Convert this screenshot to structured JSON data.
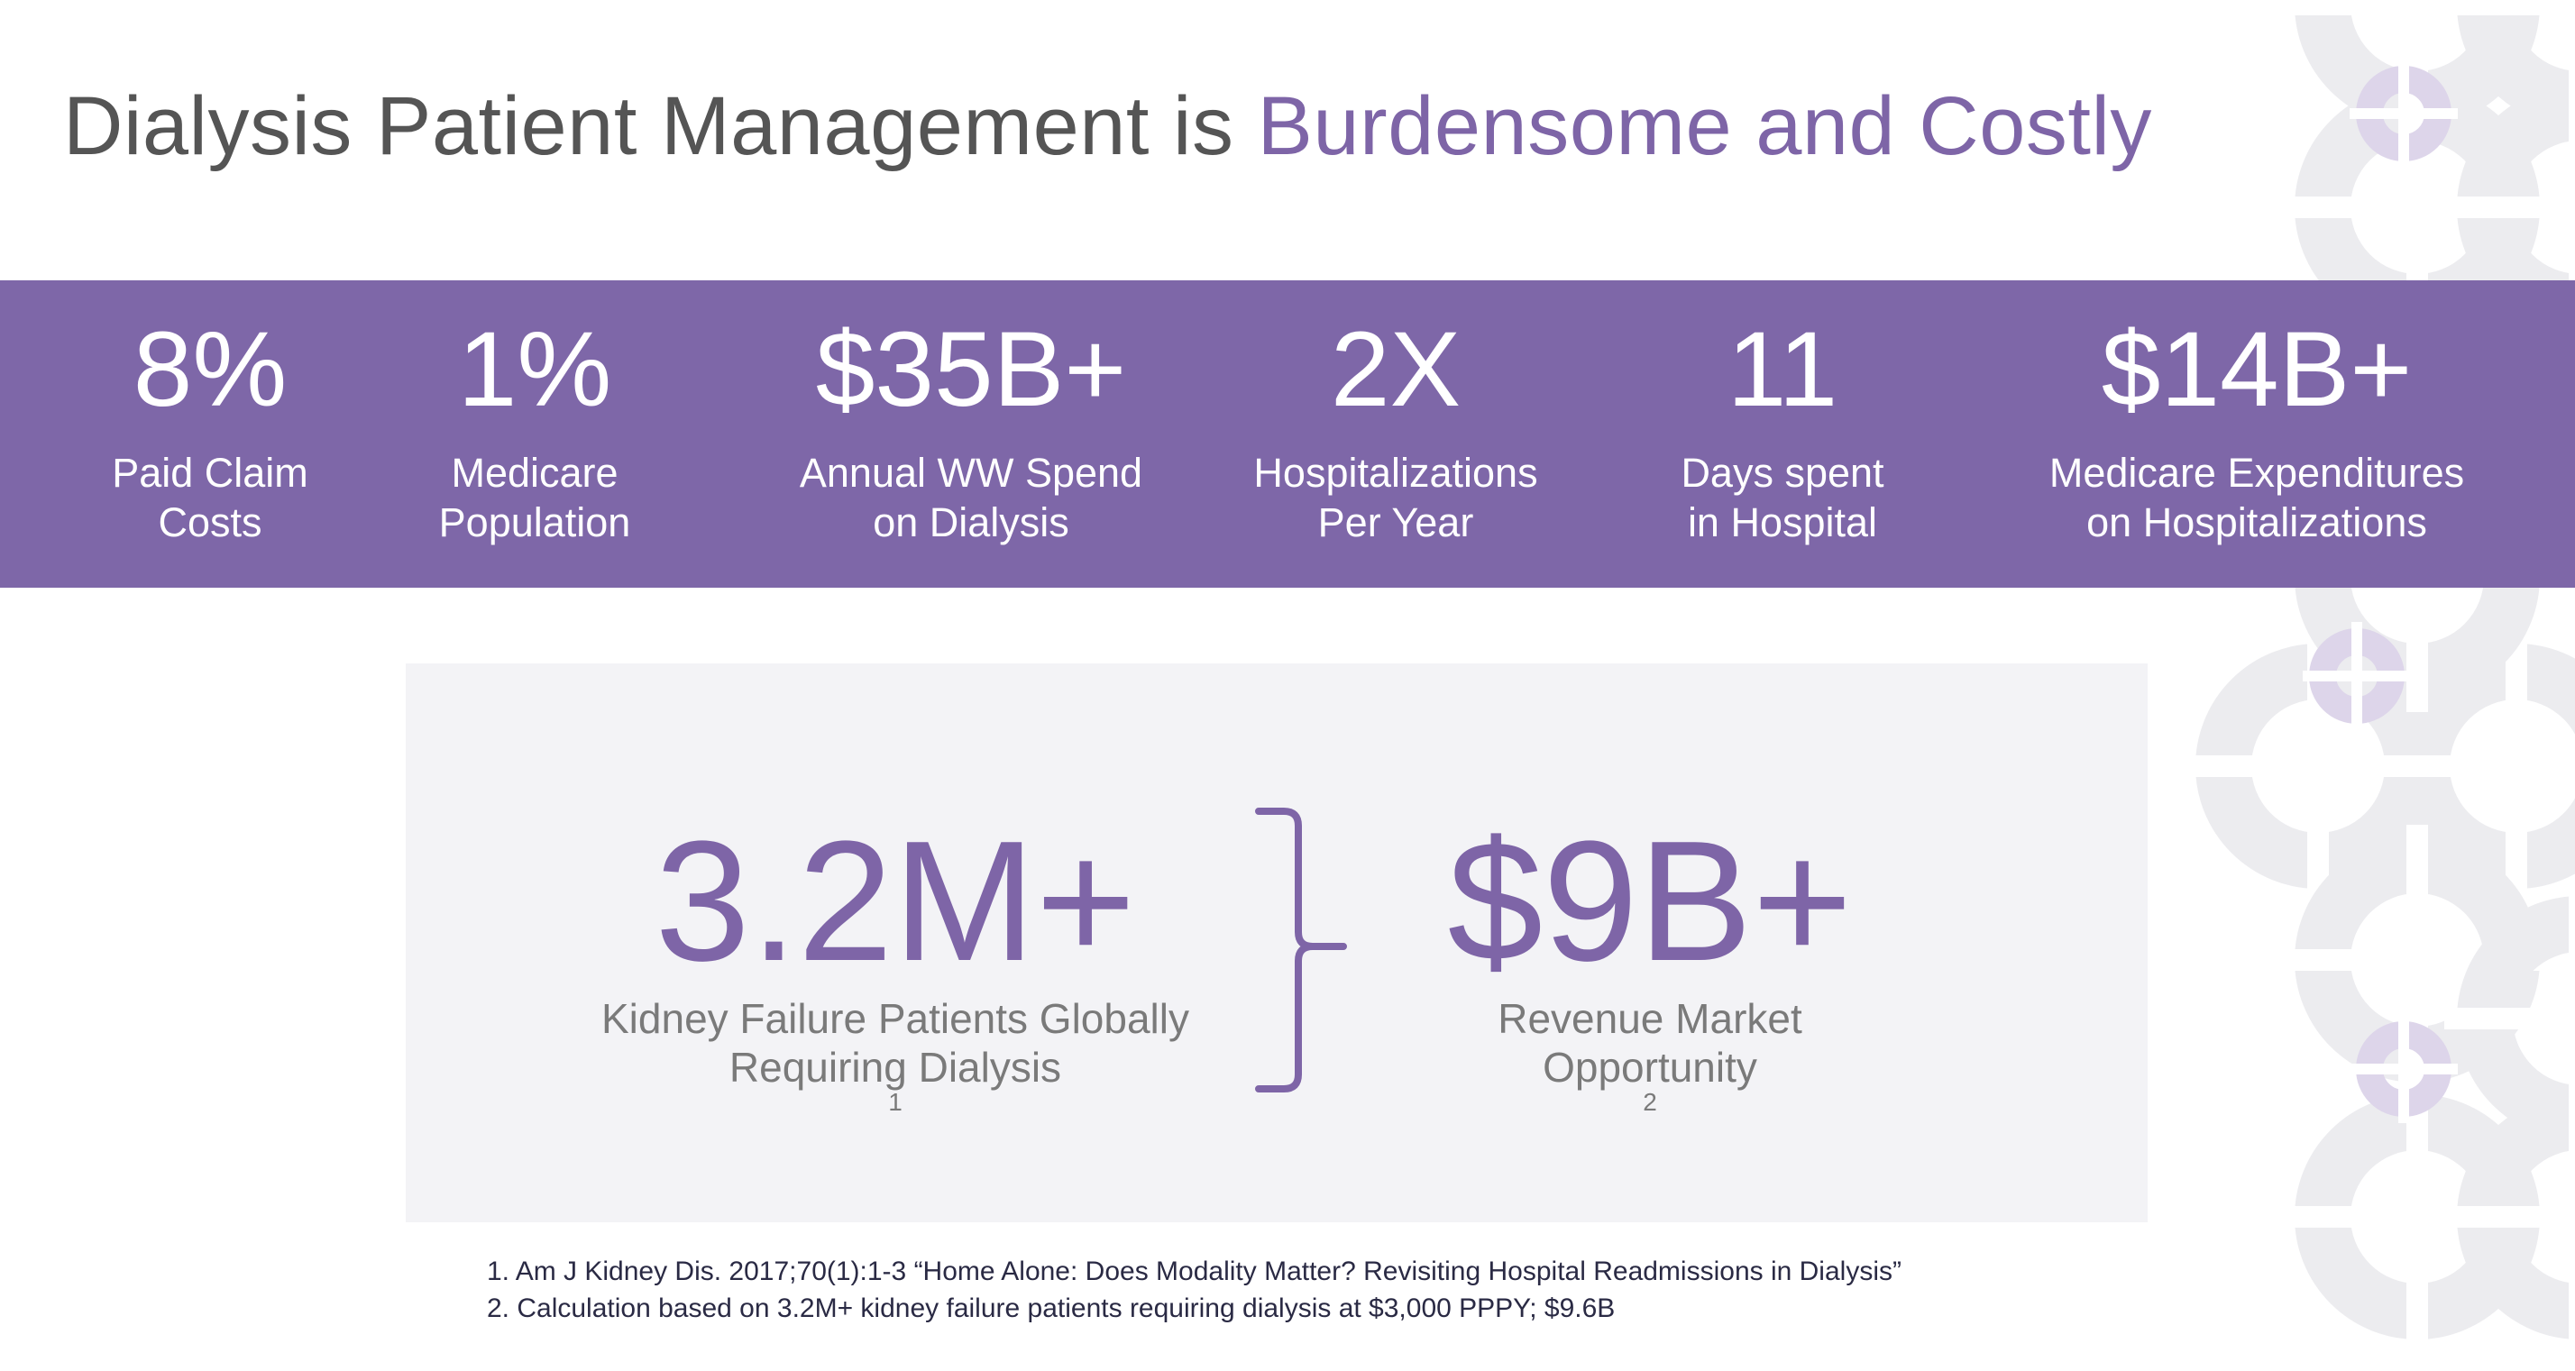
{
  "title": {
    "main": "Dialysis Patient Management is ",
    "accent": "Burdensome and Costly"
  },
  "stats": [
    {
      "value": "8%",
      "label_line1": "Paid Claim",
      "label_line2": "Costs"
    },
    {
      "value": "1%",
      "label_line1": "Medicare",
      "label_line2": "Population"
    },
    {
      "value": "$35B+",
      "label_line1": "Annual WW Spend",
      "label_line2": "on Dialysis"
    },
    {
      "value": "2X",
      "label_line1": "Hospitalizations",
      "label_line2": "Per Year"
    },
    {
      "value": "11",
      "label_line1": "Days spent",
      "label_line2": "in Hospital"
    },
    {
      "value": "$14B+",
      "label_line1": "Medicare Expenditures",
      "label_line2": "on Hospitalizations"
    }
  ],
  "highlights": {
    "patients": {
      "value": "3.2M+",
      "label_line1": "Kidney Failure Patients Globally",
      "label_line2": "Requiring Dialysis",
      "footnote_ref": "1"
    },
    "market": {
      "value": "$9B+",
      "label_line1": "Revenue Market",
      "label_line2": "Opportunity",
      "footnote_ref": "2"
    }
  },
  "footnotes": [
    "1. Am J Kidney Dis. 2017;70(1):1-3 “Home Alone: Does Modality Matter? Revisiting Hospital Readmissions in Dialysis”",
    "2. Calculation based on 3.2M+ kidney failure patients requiring dialysis at $3,000 PPPY; $9.6B"
  ],
  "colors": {
    "brand_purple": "#7e67a8",
    "panel_bg": "#f3f3f6",
    "title_gray": "#555555",
    "decor_gray": "#ececef",
    "decor_lavender": "#ddd5ea"
  }
}
